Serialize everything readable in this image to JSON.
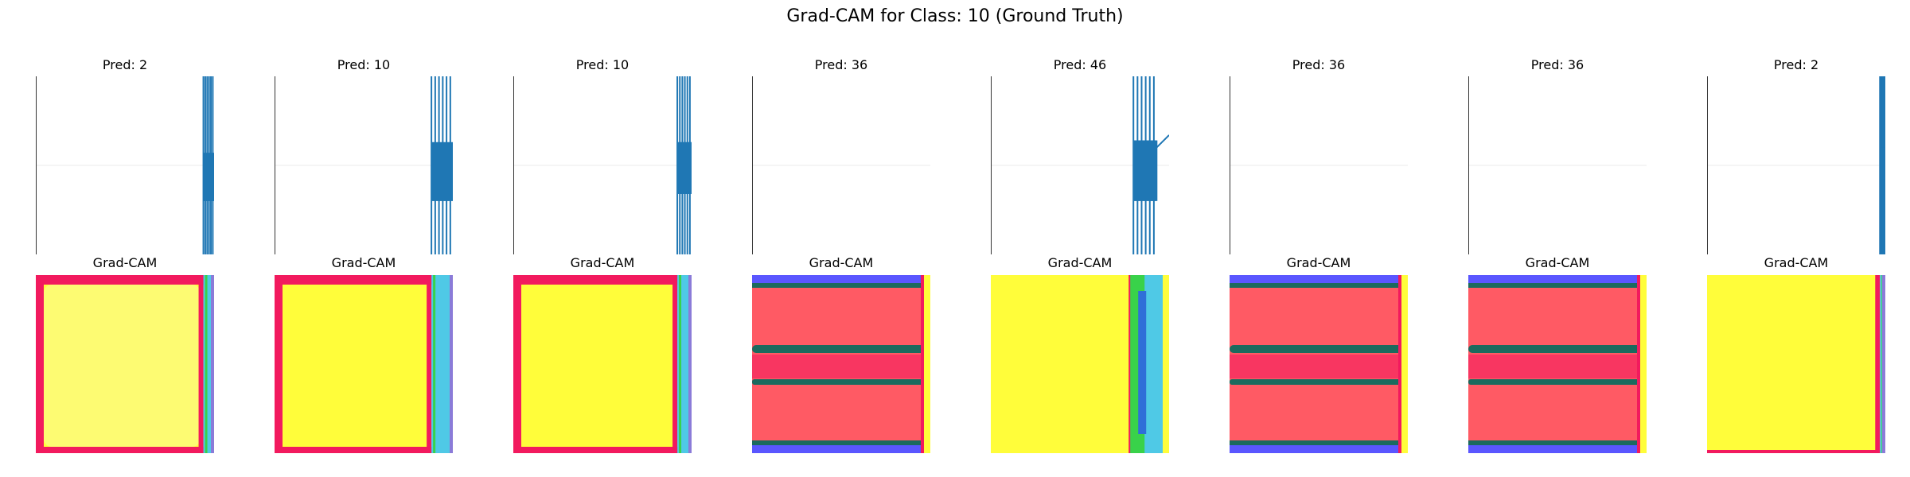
{
  "figure": {
    "title": "Grad-CAM for Class: 10 (Ground Truth)"
  },
  "chart_data": {
    "type": "image-grid",
    "title": "Grad-CAM for Class: 10 (Ground Truth)",
    "ground_truth_class": 10,
    "rows": [
      "prediction-plot",
      "grad-cam-heatmap"
    ],
    "panels": [
      {
        "pred_title": "Pred: 2",
        "prediction": 2,
        "cam_title": "Grad-CAM",
        "cam_style": "bright",
        "signal_band": [
          0.94,
          1.0
        ],
        "signal_low": 0.43,
        "signal_high": 0.7
      },
      {
        "pred_title": "Pred: 10",
        "prediction": 10,
        "cam_title": "Grad-CAM",
        "cam_style": "bright",
        "signal_band": [
          0.88,
          1.0
        ],
        "signal_low": 0.37,
        "signal_high": 0.7
      },
      {
        "pred_title": "Pred: 10",
        "prediction": 10,
        "cam_title": "Grad-CAM",
        "cam_style": "bright",
        "signal_band": [
          0.92,
          1.0
        ],
        "signal_low": 0.37,
        "signal_high": 0.66
      },
      {
        "pred_title": "Pred: 36",
        "prediction": 36,
        "cam_title": "Grad-CAM",
        "cam_style": "striped",
        "signal_band": [],
        "signal_low": 0,
        "signal_high": 0
      },
      {
        "pred_title": "Pred: 46",
        "prediction": 46,
        "cam_title": "Grad-CAM",
        "cam_style": "bright",
        "signal_band": [
          0.8,
          0.93
        ],
        "signal_low": 0.36,
        "signal_high": 0.7
      },
      {
        "pred_title": "Pred: 36",
        "prediction": 36,
        "cam_title": "Grad-CAM",
        "cam_style": "striped",
        "signal_band": [],
        "signal_low": 0,
        "signal_high": 0
      },
      {
        "pred_title": "Pred: 36",
        "prediction": 36,
        "cam_title": "Grad-CAM",
        "cam_style": "striped",
        "signal_band": [],
        "signal_low": 0,
        "signal_high": 0
      },
      {
        "pred_title": "Pred: 2",
        "prediction": 2,
        "cam_title": "Grad-CAM",
        "cam_style": "bright",
        "signal_band": [
          0.97,
          1.0
        ],
        "signal_low": 0.4,
        "signal_high": 0.58
      }
    ],
    "colors": {
      "line": "#1f77b4",
      "cam_yellow": "#fffd3a",
      "cam_yellow_light": "#fdfb72",
      "cam_red": "#ff5a64",
      "cam_magenta": "#f21a5e",
      "cam_teal": "#1b6a5e",
      "cam_blue": "#5a56ff",
      "cam_cyan": "#4fc9e6",
      "cam_green": "#39d24a"
    }
  }
}
